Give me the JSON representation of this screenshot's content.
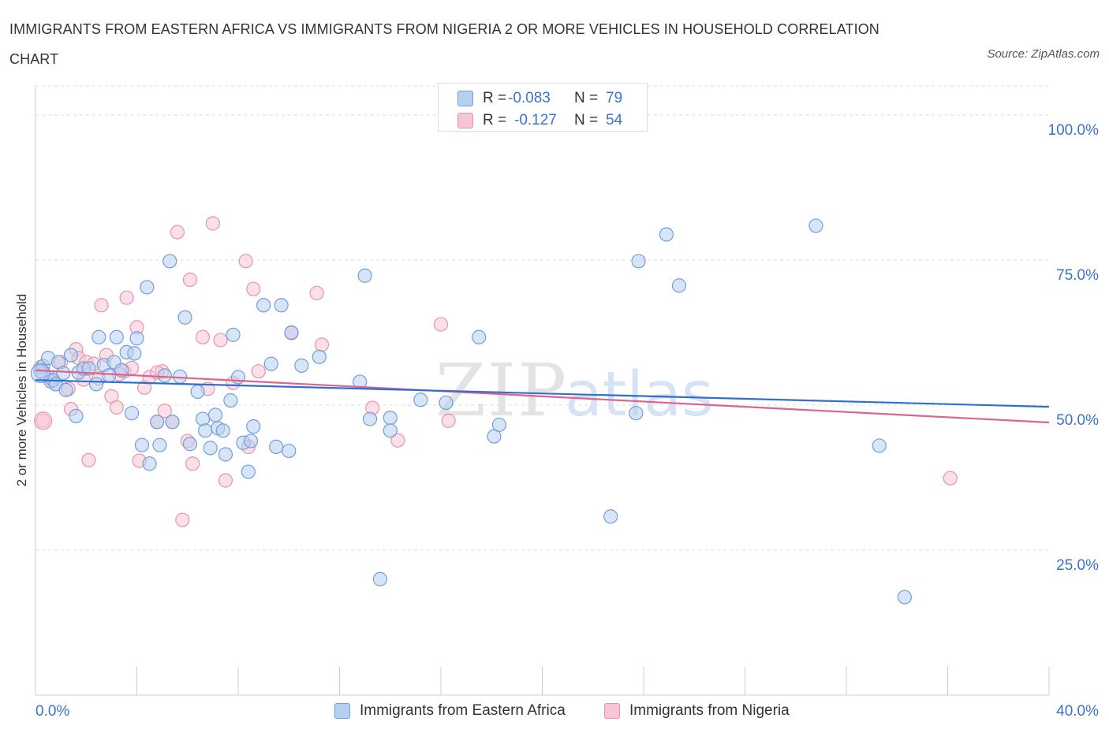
{
  "title": "IMMIGRANTS FROM EASTERN AFRICA VS IMMIGRANTS FROM NIGERIA 2 OR MORE VEHICLES IN HOUSEHOLD CORRELATION CHART",
  "source": "Source: ZipAtlas.com",
  "watermark": {
    "zip": "ZIP",
    "atlas": "atlas"
  },
  "legend": {
    "series": [
      {
        "r_label": "R =",
        "r_value": "-0.083",
        "n_label": "N =",
        "n_value": "79"
      },
      {
        "r_label": "R =",
        "r_value": "-0.127",
        "n_label": "N =",
        "n_value": "54"
      }
    ]
  },
  "colors": {
    "blue_fill": "#b8d0f0",
    "blue_stroke": "#6f9fdc",
    "blue_line": "#2f6fd0",
    "pink_fill": "#f7c6d6",
    "pink_stroke": "#e991ae",
    "pink_line": "#e0628e",
    "axis_text": "#3b73c9",
    "grid": "#dddddd"
  },
  "chart_data": {
    "type": "scatter",
    "title": "IMMIGRANTS FROM EASTERN AFRICA VS IMMIGRANTS FROM NIGERIA 2 OR MORE VEHICLES IN HOUSEHOLD CORRELATION CHART",
    "xlabel": "",
    "ylabel": "2 or more Vehicles in Household",
    "xlim": [
      0,
      40
    ],
    "ylim": [
      0,
      105
    ],
    "x_tick_labels": [
      "0.0%",
      "40.0%"
    ],
    "y_ticks": [
      25,
      50,
      75,
      100
    ],
    "y_tick_labels": [
      "25.0%",
      "50.0%",
      "75.0%",
      "100.0%"
    ],
    "grid": true,
    "legend_position": "bottom",
    "series": [
      {
        "name": "Immigrants from Eastern Africa",
        "color": "#6f9fdc",
        "trend": {
          "x": [
            0,
            40
          ],
          "y": [
            54.3,
            49.7
          ]
        },
        "points": [
          {
            "x": 0.3,
            "y": 56.7
          },
          {
            "x": 0.3,
            "y": 55.5
          },
          {
            "x": 0.5,
            "y": 58.1
          },
          {
            "x": 0.6,
            "y": 54.1
          },
          {
            "x": 0.7,
            "y": 54.3
          },
          {
            "x": 0.8,
            "y": 53.6
          },
          {
            "x": 0.9,
            "y": 57.4
          },
          {
            "x": 1.1,
            "y": 55.5
          },
          {
            "x": 1.2,
            "y": 52.6
          },
          {
            "x": 1.4,
            "y": 58.6
          },
          {
            "x": 1.6,
            "y": 48.1
          },
          {
            "x": 1.7,
            "y": 55.6
          },
          {
            "x": 1.9,
            "y": 56.3
          },
          {
            "x": 2.1,
            "y": 56.3
          },
          {
            "x": 2.4,
            "y": 53.6
          },
          {
            "x": 2.5,
            "y": 61.7
          },
          {
            "x": 2.7,
            "y": 56.9
          },
          {
            "x": 2.9,
            "y": 55.1
          },
          {
            "x": 3.1,
            "y": 57.4
          },
          {
            "x": 3.2,
            "y": 61.7
          },
          {
            "x": 3.4,
            "y": 56.0
          },
          {
            "x": 3.6,
            "y": 59.1
          },
          {
            "x": 3.8,
            "y": 48.6
          },
          {
            "x": 3.9,
            "y": 58.9
          },
          {
            "x": 4.0,
            "y": 61.5
          },
          {
            "x": 4.2,
            "y": 43.1
          },
          {
            "x": 4.4,
            "y": 70.3
          },
          {
            "x": 4.5,
            "y": 39.9
          },
          {
            "x": 4.8,
            "y": 47.1
          },
          {
            "x": 4.9,
            "y": 43.1
          },
          {
            "x": 5.1,
            "y": 55.1
          },
          {
            "x": 5.3,
            "y": 74.8
          },
          {
            "x": 5.4,
            "y": 47.1
          },
          {
            "x": 5.7,
            "y": 54.9
          },
          {
            "x": 5.9,
            "y": 65.1
          },
          {
            "x": 6.1,
            "y": 43.3
          },
          {
            "x": 6.4,
            "y": 52.3
          },
          {
            "x": 6.6,
            "y": 47.6
          },
          {
            "x": 6.7,
            "y": 45.6
          },
          {
            "x": 6.9,
            "y": 42.6
          },
          {
            "x": 7.1,
            "y": 48.3
          },
          {
            "x": 7.2,
            "y": 46.0
          },
          {
            "x": 7.4,
            "y": 45.6
          },
          {
            "x": 7.5,
            "y": 41.5
          },
          {
            "x": 7.7,
            "y": 50.8
          },
          {
            "x": 7.8,
            "y": 62.1
          },
          {
            "x": 8.0,
            "y": 54.8
          },
          {
            "x": 8.2,
            "y": 43.5
          },
          {
            "x": 8.4,
            "y": 38.5
          },
          {
            "x": 8.5,
            "y": 43.8
          },
          {
            "x": 8.6,
            "y": 46.3
          },
          {
            "x": 9.0,
            "y": 67.2
          },
          {
            "x": 9.3,
            "y": 57.1
          },
          {
            "x": 9.5,
            "y": 42.8
          },
          {
            "x": 9.7,
            "y": 67.2
          },
          {
            "x": 10.0,
            "y": 42.1
          },
          {
            "x": 10.1,
            "y": 62.5
          },
          {
            "x": 10.5,
            "y": 56.8
          },
          {
            "x": 11.2,
            "y": 58.3
          },
          {
            "x": 12.8,
            "y": 54.0
          },
          {
            "x": 13.0,
            "y": 72.3
          },
          {
            "x": 13.2,
            "y": 47.6
          },
          {
            "x": 13.6,
            "y": 20.0
          },
          {
            "x": 14.0,
            "y": 47.8
          },
          {
            "x": 14.0,
            "y": 45.6
          },
          {
            "x": 15.2,
            "y": 50.9
          },
          {
            "x": 16.2,
            "y": 50.4
          },
          {
            "x": 17.5,
            "y": 61.7
          },
          {
            "x": 18.1,
            "y": 44.6
          },
          {
            "x": 18.3,
            "y": 46.6
          },
          {
            "x": 22.7,
            "y": 30.8
          },
          {
            "x": 23.7,
            "y": 48.6
          },
          {
            "x": 23.8,
            "y": 74.8
          },
          {
            "x": 24.9,
            "y": 79.4
          },
          {
            "x": 25.4,
            "y": 70.6
          },
          {
            "x": 30.8,
            "y": 80.9
          },
          {
            "x": 33.3,
            "y": 43.0
          },
          {
            "x": 34.3,
            "y": 16.9
          },
          {
            "x": 0.2,
            "y": 55.8
          }
        ]
      },
      {
        "name": "Immigrants from Nigeria",
        "color": "#e991ae",
        "trend": {
          "x": [
            0,
            40
          ],
          "y": [
            56.0,
            47.0
          ]
        },
        "points": [
          {
            "x": 0.2,
            "y": 56.5
          },
          {
            "x": 0.3,
            "y": 47.3
          },
          {
            "x": 0.6,
            "y": 54.6
          },
          {
            "x": 0.8,
            "y": 53.6
          },
          {
            "x": 1.0,
            "y": 57.4
          },
          {
            "x": 1.3,
            "y": 52.8
          },
          {
            "x": 1.4,
            "y": 49.3
          },
          {
            "x": 1.6,
            "y": 59.6
          },
          {
            "x": 1.7,
            "y": 58.1
          },
          {
            "x": 2.0,
            "y": 57.4
          },
          {
            "x": 2.1,
            "y": 40.5
          },
          {
            "x": 2.3,
            "y": 57.1
          },
          {
            "x": 2.5,
            "y": 54.6
          },
          {
            "x": 2.6,
            "y": 67.2
          },
          {
            "x": 2.8,
            "y": 58.6
          },
          {
            "x": 3.0,
            "y": 51.5
          },
          {
            "x": 3.2,
            "y": 49.6
          },
          {
            "x": 3.5,
            "y": 55.8
          },
          {
            "x": 3.6,
            "y": 68.5
          },
          {
            "x": 3.8,
            "y": 56.4
          },
          {
            "x": 4.0,
            "y": 63.4
          },
          {
            "x": 4.1,
            "y": 40.4
          },
          {
            "x": 4.3,
            "y": 53.0
          },
          {
            "x": 4.5,
            "y": 54.8
          },
          {
            "x": 4.8,
            "y": 47.1
          },
          {
            "x": 5.0,
            "y": 55.8
          },
          {
            "x": 5.1,
            "y": 49.0
          },
          {
            "x": 5.4,
            "y": 47.1
          },
          {
            "x": 5.6,
            "y": 79.8
          },
          {
            "x": 5.8,
            "y": 30.2
          },
          {
            "x": 6.0,
            "y": 43.8
          },
          {
            "x": 6.1,
            "y": 71.6
          },
          {
            "x": 6.2,
            "y": 39.9
          },
          {
            "x": 6.6,
            "y": 61.7
          },
          {
            "x": 6.8,
            "y": 52.8
          },
          {
            "x": 7.0,
            "y": 81.3
          },
          {
            "x": 7.3,
            "y": 61.2
          },
          {
            "x": 7.5,
            "y": 37.0
          },
          {
            "x": 7.8,
            "y": 53.8
          },
          {
            "x": 8.3,
            "y": 74.8
          },
          {
            "x": 8.4,
            "y": 42.8
          },
          {
            "x": 8.6,
            "y": 70.0
          },
          {
            "x": 8.8,
            "y": 55.8
          },
          {
            "x": 10.1,
            "y": 62.4
          },
          {
            "x": 11.1,
            "y": 69.3
          },
          {
            "x": 11.3,
            "y": 60.4
          },
          {
            "x": 13.3,
            "y": 49.5
          },
          {
            "x": 14.3,
            "y": 43.9
          },
          {
            "x": 16.0,
            "y": 63.9
          },
          {
            "x": 16.3,
            "y": 47.3
          },
          {
            "x": 36.1,
            "y": 37.4
          },
          {
            "x": 1.9,
            "y": 54.4
          },
          {
            "x": 3.3,
            "y": 55.3
          },
          {
            "x": 4.8,
            "y": 55.6
          }
        ]
      }
    ]
  }
}
